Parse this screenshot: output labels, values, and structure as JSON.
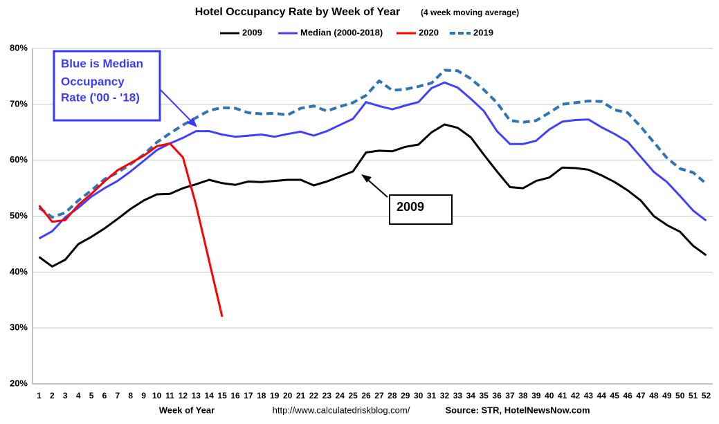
{
  "chart_data": {
    "type": "line",
    "title": "Hotel Occupancy Rate by  Week of Year",
    "subtitle": "(4 week moving average)",
    "x_label": "Week of Year",
    "url": "http://www.calculatedriskblog.com/",
    "source": "Source: STR, HotelNewsNow.com",
    "annotations": [
      {
        "lines": [
          "Blue is Median",
          "Occupancy",
          "Rate ('00 - '18)"
        ],
        "color": "#3a3aff"
      },
      {
        "lines": [
          "2009"
        ],
        "color": "#000000"
      }
    ],
    "categories": [
      1,
      2,
      3,
      4,
      5,
      6,
      7,
      8,
      9,
      10,
      11,
      12,
      13,
      14,
      15,
      16,
      17,
      18,
      19,
      20,
      21,
      22,
      23,
      24,
      25,
      26,
      27,
      28,
      29,
      30,
      31,
      32,
      33,
      34,
      35,
      36,
      37,
      38,
      39,
      40,
      41,
      42,
      43,
      44,
      45,
      46,
      47,
      48,
      49,
      50,
      51,
      52
    ],
    "ylim": [
      20,
      80
    ],
    "yticks": [
      {
        "value": 20,
        "label": "20%"
      },
      {
        "value": 30,
        "label": "30%"
      },
      {
        "value": 40,
        "label": "40%"
      },
      {
        "value": 50,
        "label": "50%"
      },
      {
        "value": 60,
        "label": "60%"
      },
      {
        "value": 70,
        "label": "70%"
      },
      {
        "value": 80,
        "label": "80%"
      }
    ],
    "grid": true,
    "legend": "top",
    "series": [
      {
        "name": "2009",
        "color": "#000000",
        "dashed": false,
        "values": [
          42.7,
          41.0,
          42.2,
          45.0,
          46.3,
          47.8,
          49.5,
          51.3,
          52.8,
          53.9,
          54.0,
          55.0,
          55.7,
          56.5,
          55.9,
          55.6,
          56.2,
          56.1,
          56.3,
          56.5,
          56.5,
          55.5,
          56.2,
          57.1,
          58.0,
          61.4,
          61.7,
          61.6,
          62.4,
          62.8,
          65.0,
          66.4,
          65.8,
          64.1,
          61.0,
          58.0,
          55.2,
          55.0,
          56.3,
          56.9,
          58.7,
          58.6,
          58.3,
          57.3,
          56.1,
          54.6,
          52.8,
          50.0,
          48.4,
          47.2,
          44.7,
          43.0
        ]
      },
      {
        "name": "Median (2000-2018)",
        "color": "#4040ff",
        "dashed": false,
        "values": [
          46.0,
          47.3,
          49.8,
          51.5,
          53.5,
          55.0,
          56.3,
          58.0,
          59.9,
          61.8,
          63.0,
          64.0,
          65.2,
          65.2,
          64.6,
          64.2,
          64.4,
          64.6,
          64.2,
          64.7,
          65.1,
          64.4,
          65.2,
          66.3,
          67.4,
          70.4,
          69.7,
          69.1,
          69.8,
          70.4,
          72.9,
          73.9,
          73.0,
          71.0,
          68.8,
          65.2,
          62.9,
          62.9,
          63.5,
          65.5,
          66.9,
          67.2,
          67.3,
          65.9,
          64.7,
          63.3,
          60.6,
          57.9,
          56.1,
          53.6,
          51.0,
          49.2
        ]
      },
      {
        "name": "2020",
        "color": "#ff0000",
        "dashed": false,
        "values": [
          51.9,
          49.0,
          49.3,
          52.0,
          54.0,
          56.2,
          58.2,
          59.5,
          60.8,
          62.5,
          63.0,
          60.5,
          52.0,
          42.0,
          32.0,
          null,
          null,
          null,
          null,
          null,
          null,
          null,
          null,
          null,
          null,
          null,
          null,
          null,
          null,
          null,
          null,
          null,
          null,
          null,
          null,
          null,
          null,
          null,
          null,
          null,
          null,
          null,
          null,
          null,
          null,
          null,
          null,
          null,
          null,
          null,
          null,
          null
        ]
      },
      {
        "name": "2019",
        "color": "#2e75b6",
        "dashed": true,
        "values": [
          51.5,
          49.8,
          50.6,
          52.8,
          54.6,
          56.6,
          57.8,
          59.3,
          61.0,
          63.2,
          64.8,
          66.3,
          67.6,
          68.9,
          69.4,
          69.3,
          68.5,
          68.3,
          68.4,
          68.1,
          69.3,
          69.7,
          68.8,
          69.6,
          70.3,
          71.6,
          74.2,
          72.5,
          72.7,
          73.2,
          73.8,
          76.1,
          76.0,
          74.6,
          72.6,
          70.3,
          67.1,
          66.8,
          67.1,
          68.5,
          70.0,
          70.3,
          70.6,
          70.5,
          69.0,
          68.5,
          66.0,
          63.2,
          60.4,
          58.5,
          57.8,
          55.8
        ]
      }
    ]
  }
}
